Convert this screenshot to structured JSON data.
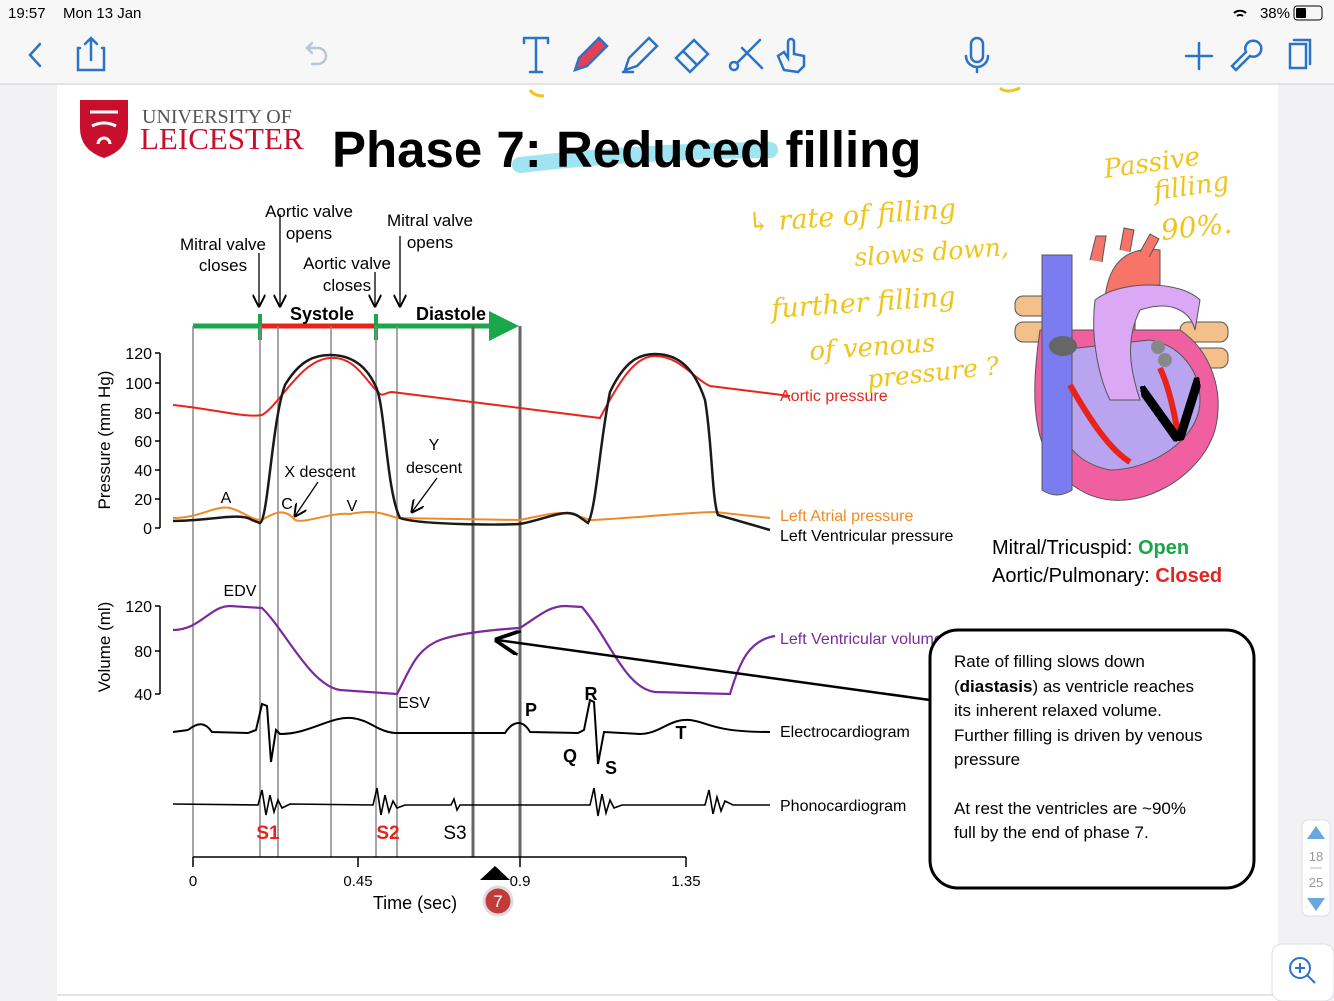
{
  "status_bar": {
    "time": "19:57",
    "date": "Mon 13 Jan",
    "battery": "38%"
  },
  "pager": {
    "current": "18",
    "total": "25"
  },
  "slide": {
    "logo": {
      "line1": "UNIVERSITY OF",
      "line2": "LEICESTER"
    },
    "title": "Phase 7: Reduced filling",
    "events": [
      {
        "lines": [
          "Mitral valve",
          "closes"
        ]
      },
      {
        "lines": [
          "Aortic valve",
          "opens"
        ]
      },
      {
        "lines": [
          "Aortic valve",
          "closes"
        ]
      },
      {
        "lines": [
          "Mitral valve",
          "opens"
        ]
      }
    ],
    "phases": [
      "Systole",
      "Diastole"
    ],
    "pressure_axis": {
      "label": "Pressure (mm Hg)",
      "ticks": [
        120,
        100,
        80,
        60,
        40,
        20,
        0
      ]
    },
    "volume_axis": {
      "label": "Volume (ml)",
      "ticks": [
        120,
        80,
        40
      ]
    },
    "time_axis": {
      "label": "Time (sec)",
      "ticks": [
        0,
        0.45,
        0.9,
        1.35
      ]
    },
    "curve_labels": [
      "Aortic pressure",
      "Left Atrial pressure",
      "Left Ventricular pressure",
      "Left Ventricular volume",
      "Electrocardiogram",
      "Phonocardiogram"
    ],
    "point_labels": {
      "a": "A",
      "c": "C",
      "v": "V",
      "x_descent": "X descent",
      "y_descent": [
        "Y",
        "descent"
      ],
      "edv": "EDV",
      "esv": "ESV"
    },
    "ecg_labels": {
      "p": "P",
      "q": "Q",
      "r": "R",
      "s": "S",
      "t": "T"
    },
    "heart_sounds": [
      "S1",
      "S2",
      "S3"
    ],
    "phase_marker": "7",
    "valves": [
      {
        "label": "Mitral/Tricuspid:",
        "state": "Open"
      },
      {
        "label": "Aortic/Pulmonary:",
        "state": "Closed"
      }
    ],
    "callout": {
      "paragraph1": [
        "Rate of filling slows down",
        [
          "(",
          "diastasis",
          ") as ventricle reaches"
        ],
        "its inherent relaxed volume.",
        "Further filling is driven by venous",
        "pressure"
      ],
      "paragraph2": [
        "At rest the ventricles are  ~90%",
        "full by the end of phase 7."
      ]
    },
    "handwriting": {
      "passive": [
        "Passive",
        "filling",
        "90%."
      ],
      "notes": [
        "↳ rate of filling",
        "slows down,",
        "further filling",
        "of venous",
        "pressure ?"
      ]
    }
  }
}
